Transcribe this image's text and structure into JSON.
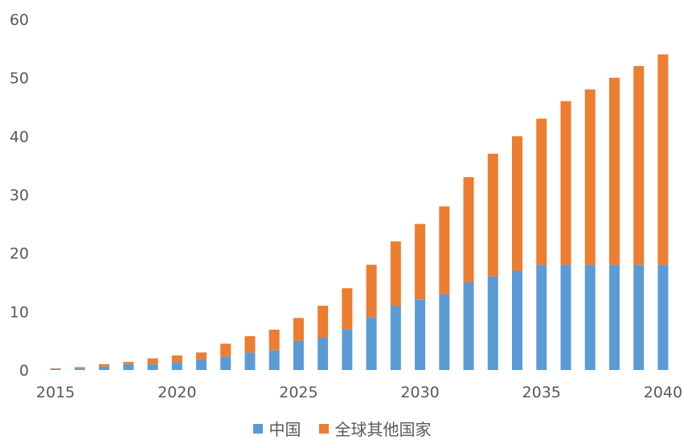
{
  "chart_data": {
    "type": "bar",
    "stacked": true,
    "title": "",
    "xlabel": "",
    "ylabel": "",
    "ylim": [
      0,
      60
    ],
    "yticks": [
      0,
      10,
      20,
      30,
      40,
      50,
      60
    ],
    "grid": false,
    "legend_position": "bottom",
    "x": [
      2015,
      2016,
      2017,
      2018,
      2019,
      2020,
      2021,
      2022,
      2023,
      2024,
      2025,
      2026,
      2027,
      2028,
      2029,
      2030,
      2031,
      2032,
      2033,
      2034,
      2035,
      2036,
      2037,
      2038,
      2039,
      2040
    ],
    "xtick_labels": [
      "2015",
      "2020",
      "2025",
      "2030",
      "2035",
      "2040"
    ],
    "series": [
      {
        "name": "中国",
        "color": "#5b9bd5",
        "values": [
          0.2,
          0.3,
          0.6,
          1.0,
          1.0,
          1.3,
          1.8,
          2.3,
          3.0,
          3.4,
          5.0,
          5.5,
          7.0,
          9.0,
          11.0,
          12.0,
          13.0,
          15.0,
          16.0,
          17.0,
          18.0,
          18.0,
          18.0,
          18.0,
          18.0,
          18.0
        ]
      },
      {
        "name": "全球其他国家",
        "color": "#ed7d31",
        "values": [
          0.1,
          0.2,
          0.4,
          0.4,
          1.0,
          1.2,
          1.2,
          2.2,
          2.8,
          3.5,
          3.9,
          5.5,
          7.0,
          9.0,
          11.0,
          13.0,
          15.0,
          18.0,
          21.0,
          23.0,
          25.0,
          28.0,
          30.0,
          32.0,
          34.0,
          36.0
        ]
      }
    ]
  }
}
